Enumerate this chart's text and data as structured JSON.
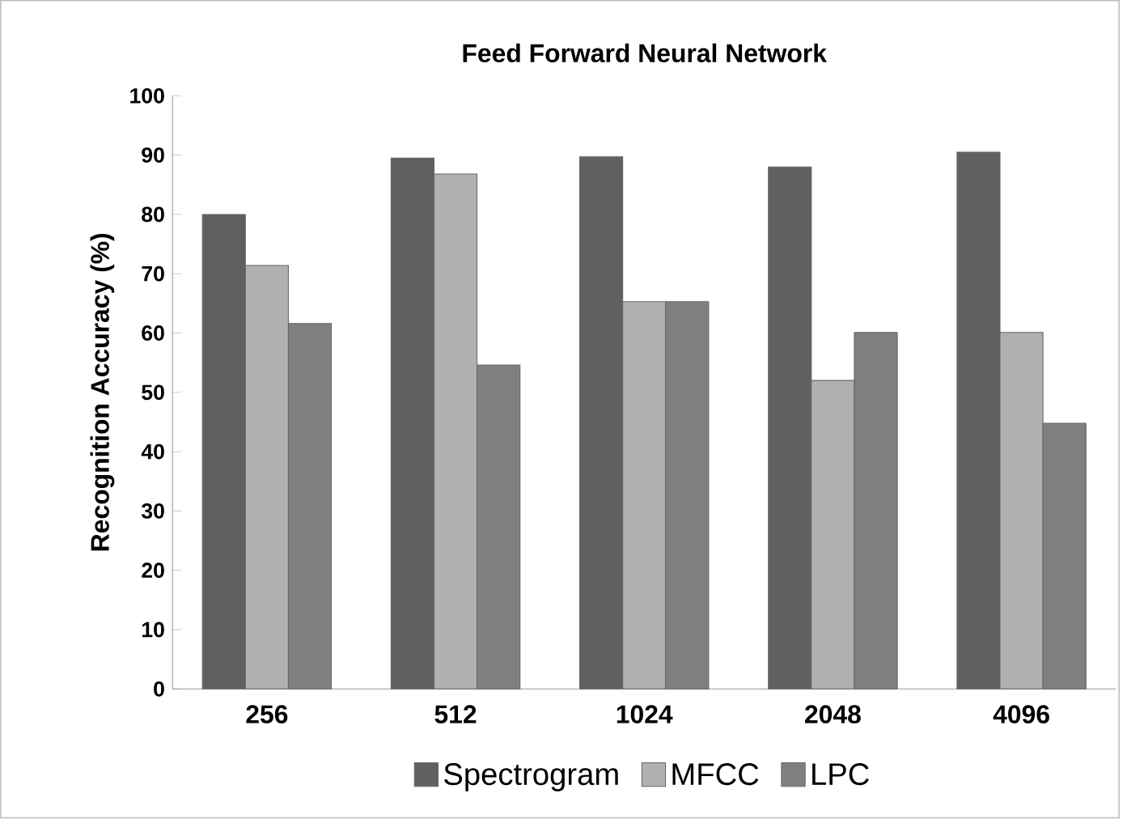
{
  "chart_data": {
    "type": "bar",
    "title": "Feed Forward Neural Network",
    "ylabel": "Recognition Accuracy (%)",
    "categories": [
      "256",
      "512",
      "1024",
      "2048",
      "4096"
    ],
    "series": [
      {
        "name": "Spectrogram",
        "color": "#606060",
        "values": [
          80.0,
          89.5,
          89.7,
          88.0,
          90.5
        ]
      },
      {
        "name": "MFCC",
        "color": "#b0b0b0",
        "values": [
          71.4,
          86.8,
          65.3,
          52.0,
          60.1
        ]
      },
      {
        "name": "LPC",
        "color": "#808080",
        "values": [
          61.6,
          54.6,
          65.3,
          60.1,
          44.8
        ]
      }
    ],
    "ylim": [
      0,
      100
    ],
    "yticks": [
      0,
      10,
      20,
      30,
      40,
      50,
      60,
      70,
      80,
      90,
      100
    ],
    "grid": false,
    "legend": "bottom"
  }
}
